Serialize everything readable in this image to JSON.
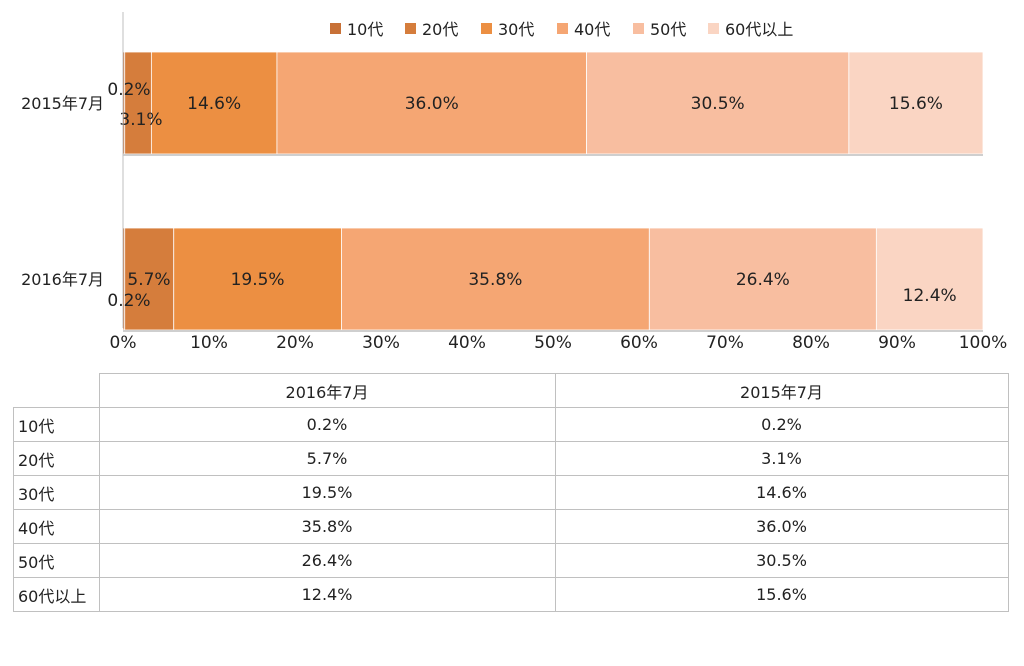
{
  "chart_data": {
    "type": "bar",
    "orientation": "horizontal-stacked-100",
    "categories": [
      "2015年7月",
      "2016年7月"
    ],
    "series": [
      {
        "name": "10代",
        "color": "#c87137",
        "values": [
          0.2,
          0.2
        ],
        "labels": [
          "0.2%",
          "0.2%"
        ]
      },
      {
        "name": "20代",
        "color": "#d57d3c",
        "values": [
          3.1,
          5.7
        ],
        "labels": [
          "3.1%",
          "5.7%"
        ]
      },
      {
        "name": "30代",
        "color": "#ec8f42",
        "values": [
          14.6,
          19.5
        ],
        "labels": [
          "14.6%",
          "19.5%"
        ]
      },
      {
        "name": "40代",
        "color": "#f5a673",
        "values": [
          36.0,
          35.8
        ],
        "labels": [
          "36.0%",
          "35.8%"
        ]
      },
      {
        "name": "50代",
        "color": "#f8bea0",
        "values": [
          30.5,
          26.4
        ],
        "labels": [
          "30.5%",
          "26.4%"
        ]
      },
      {
        "name": "60代以上",
        "color": "#fad5c3",
        "values": [
          15.6,
          12.4
        ],
        "labels": [
          "15.6%",
          "12.4%"
        ]
      }
    ],
    "xticks": [
      "0%",
      "10%",
      "20%",
      "30%",
      "40%",
      "50%",
      "60%",
      "70%",
      "80%",
      "90%",
      "100%"
    ],
    "xlim": [
      0,
      100
    ],
    "legend_position": "top",
    "grid": false
  },
  "table": {
    "columns": [
      "2016年7月",
      "2015年7月"
    ],
    "rows": [
      {
        "label": "10代",
        "values": [
          "0.2%",
          "0.2%"
        ]
      },
      {
        "label": "20代",
        "values": [
          "5.7%",
          "3.1%"
        ]
      },
      {
        "label": "30代",
        "values": [
          "19.5%",
          "14.6%"
        ]
      },
      {
        "label": "40代",
        "values": [
          "35.8%",
          "36.0%"
        ]
      },
      {
        "label": "50代",
        "values": [
          "26.4%",
          "30.5%"
        ]
      },
      {
        "label": "60代以上",
        "values": [
          "12.4%",
          "15.6%"
        ]
      }
    ]
  }
}
